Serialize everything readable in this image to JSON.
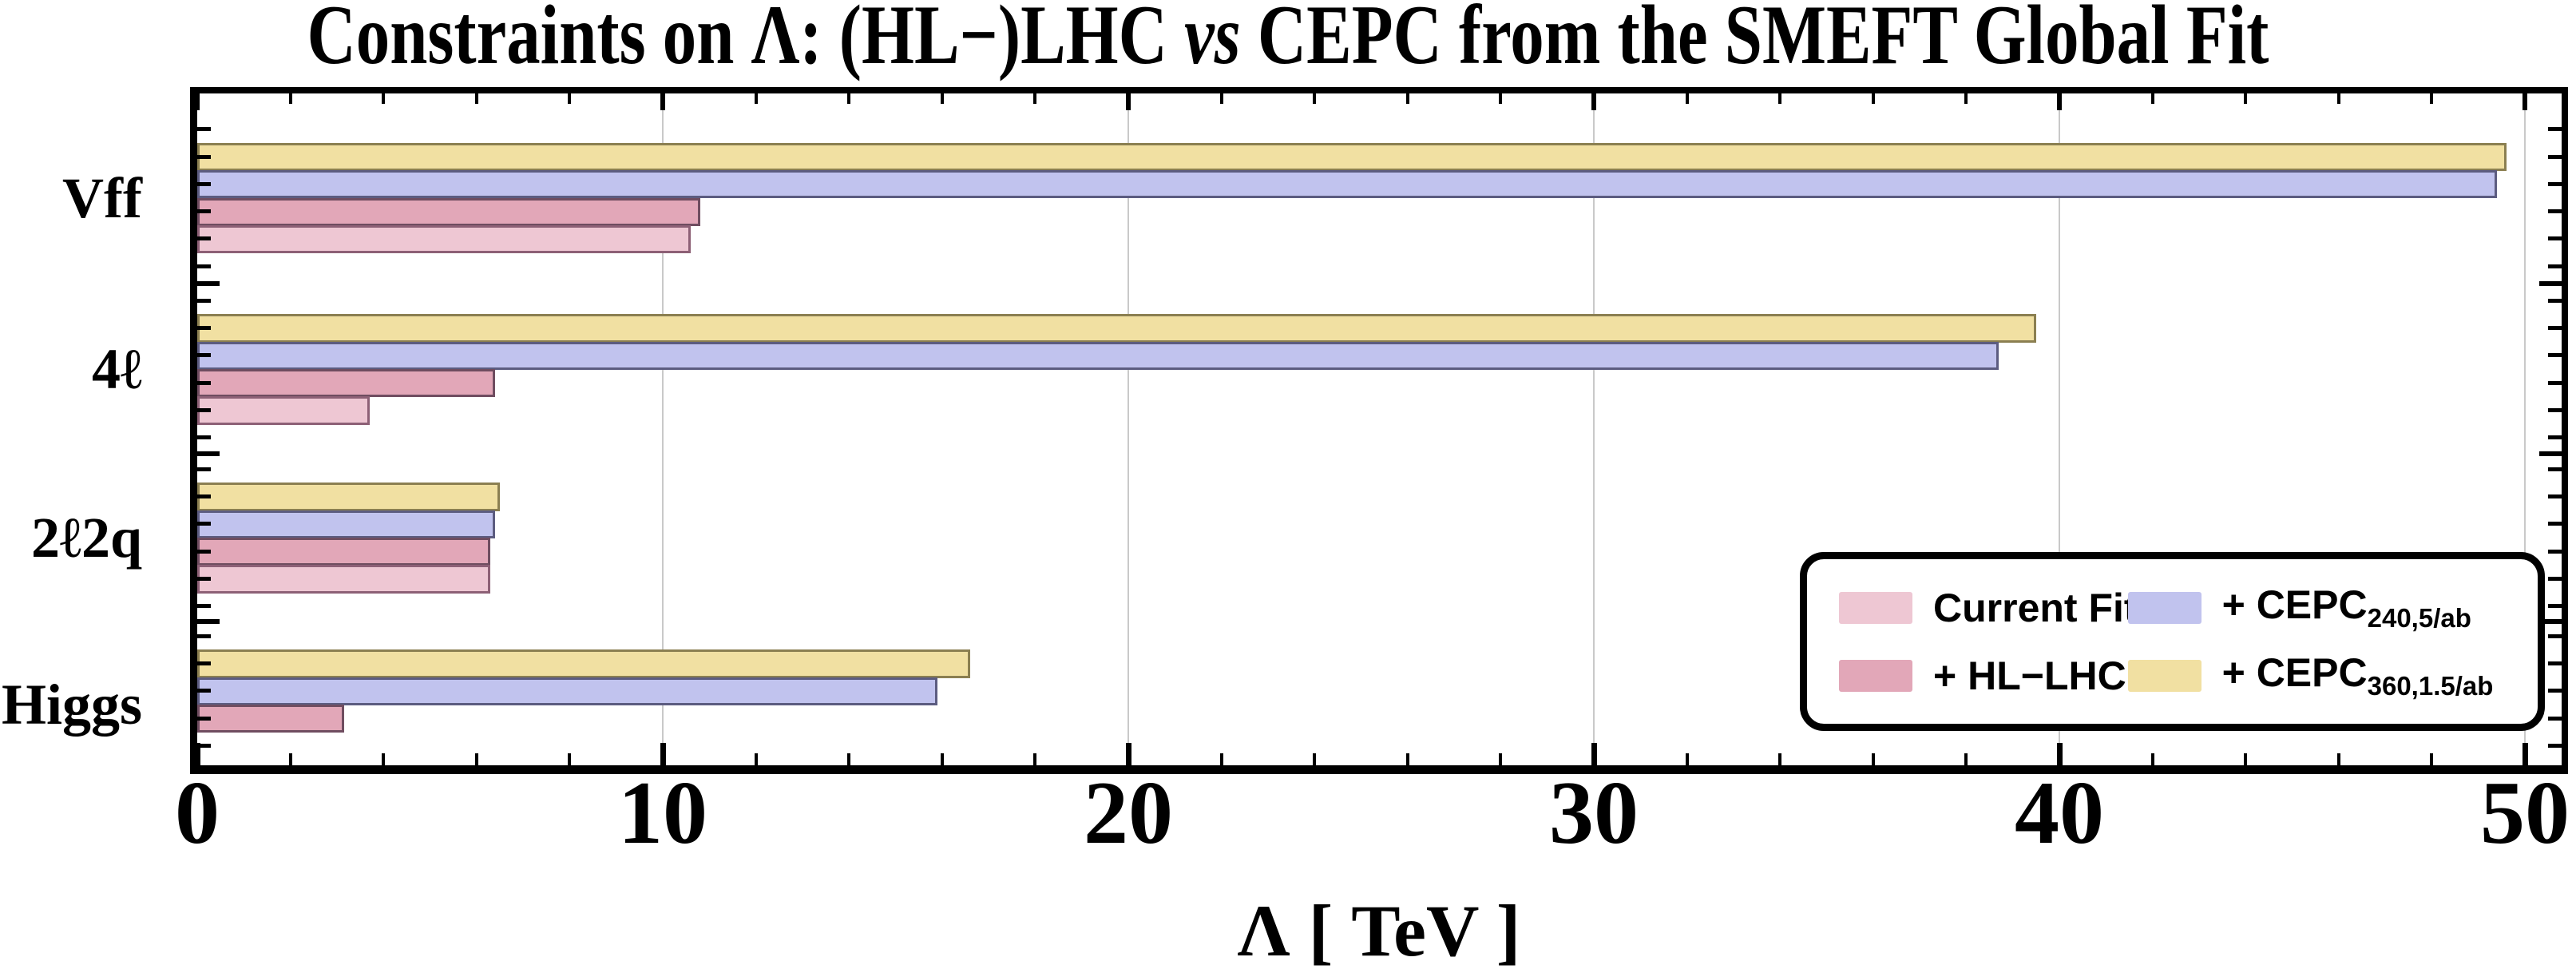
{
  "title": {
    "pre": "Constraints on Λ: (HL−)LHC ",
    "vs": "vs",
    "post": " CEPC from the SMEFT Global Fit"
  },
  "axis": {
    "x_title": "Λ [ TeV ]",
    "x_tick_labels": [
      "0",
      "10",
      "20",
      "30",
      "40",
      "50"
    ]
  },
  "chart_data": {
    "type": "bar",
    "orientation": "horizontal",
    "title": "Constraints on Λ: (HL−)LHC vs CEPC from the SMEFT Global Fit",
    "xlabel": "Λ [ TeV ]",
    "categories": [
      "Vff",
      "4ℓ",
      "2ℓ2q",
      "Higgs"
    ],
    "series": [
      {
        "name": "Current Fit",
        "sub": "",
        "fill": "#eec7d3",
        "stroke": "#8d6076",
        "values": [
          10.6,
          3.7,
          6.3,
          0
        ]
      },
      {
        "name": "+ HL−LHC",
        "sub": "",
        "fill": "#e2a7b8",
        "stroke": "#6f4d60",
        "values": [
          10.8,
          6.4,
          6.3,
          3.15
        ]
      },
      {
        "name": "+ CEPC",
        "sub": "240,5/ab",
        "fill": "#c1c3ee",
        "stroke": "#5c5c80",
        "values": [
          49.4,
          38.7,
          6.4,
          15.9
        ]
      },
      {
        "name": "+ CEPC",
        "sub": "360,1.5/ab",
        "fill": "#f1e0a2",
        "stroke": "#8b7f51",
        "values": [
          49.6,
          39.5,
          6.5,
          16.6
        ]
      }
    ],
    "xlim": [
      0,
      50.6
    ],
    "xticks": [
      0,
      10,
      20,
      30,
      40,
      50
    ],
    "minor_tick_step": 2,
    "grid": true,
    "gridline_values": [
      10,
      20,
      30,
      40,
      50
    ],
    "legend_position": "lower right",
    "bar_order_top_to_bottom": [
      3,
      2,
      1,
      0
    ]
  },
  "legend": {
    "order": [
      0,
      2,
      1,
      3
    ]
  },
  "colors": {
    "background": "#ffffff",
    "frame": "#000000",
    "grid": "#c9c9c9"
  }
}
